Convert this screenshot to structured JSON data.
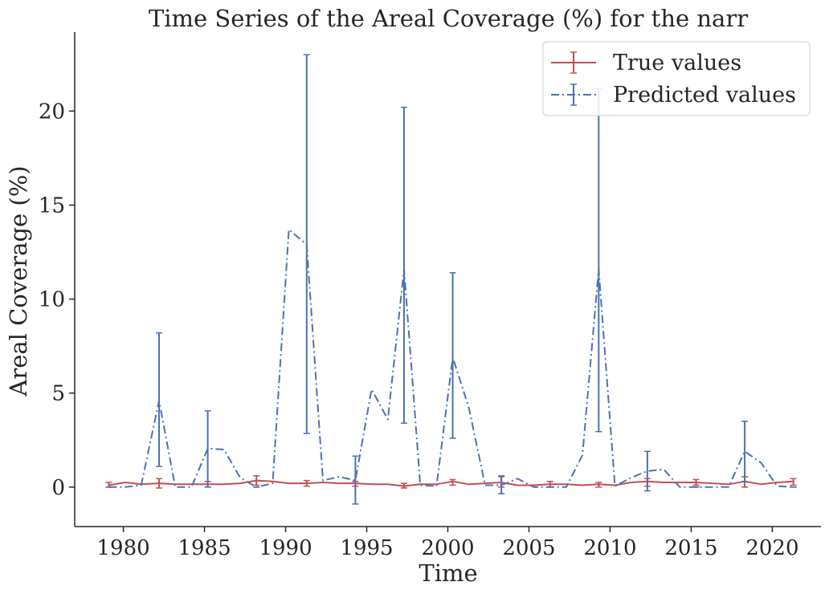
{
  "chart_data": {
    "type": "line",
    "title": "Time Series of the Areal Coverage (%) for the narr",
    "xlabel": "Time",
    "ylabel": "Areal Coverage (%)",
    "xlim": [
      1977,
      2023
    ],
    "ylim": [
      -2.1,
      24.2
    ],
    "x_ticks": [
      1980,
      1985,
      1990,
      1995,
      2000,
      2005,
      2010,
      2015,
      2020
    ],
    "y_ticks": [
      0,
      5,
      10,
      15,
      20
    ],
    "grid": false,
    "legend_position": "top-right",
    "x": [
      1979.1,
      1980.1,
      1981.1,
      1982.2,
      1983.2,
      1984.2,
      1985.2,
      1986.2,
      1987.2,
      1988.2,
      1989.2,
      1990.2,
      1991.3,
      1992.3,
      1993.3,
      1994.3,
      1995.3,
      1996.3,
      1997.3,
      1998.3,
      1999.3,
      2000.3,
      2001.3,
      2002.3,
      2003.3,
      2004.3,
      2005.3,
      2006.3,
      2007.3,
      2008.3,
      2009.3,
      2010.3,
      2011.3,
      2012.3,
      2013.3,
      2014.3,
      2015.3,
      2016.3,
      2017.3,
      2018.3,
      2019.3,
      2020.3,
      2021.3
    ],
    "series": [
      {
        "name": "True values",
        "color": "#c44e52",
        "linestyle": "solid",
        "values": [
          0.1,
          0.25,
          0.15,
          0.2,
          0.15,
          0.15,
          0.15,
          0.15,
          0.2,
          0.35,
          0.3,
          0.2,
          0.2,
          0.25,
          0.2,
          0.2,
          0.15,
          0.15,
          0.05,
          0.15,
          0.15,
          0.3,
          0.15,
          0.2,
          0.25,
          0.1,
          0.1,
          0.15,
          0.15,
          0.1,
          0.15,
          0.1,
          0.25,
          0.3,
          0.25,
          0.25,
          0.25,
          0.2,
          0.15,
          0.3,
          0.15,
          0.25,
          0.3
        ],
        "error_bars": [
          {
            "x": 1979.1,
            "y": 0.1,
            "low": 0.0,
            "high": 0.25
          },
          {
            "x": 1982.2,
            "y": 0.2,
            "low": -0.05,
            "high": 0.45
          },
          {
            "x": 1985.2,
            "y": 0.15,
            "low": 0.0,
            "high": 0.3
          },
          {
            "x": 1988.2,
            "y": 0.35,
            "low": 0.1,
            "high": 0.6
          },
          {
            "x": 1991.3,
            "y": 0.2,
            "low": 0.05,
            "high": 0.35
          },
          {
            "x": 1994.3,
            "y": 0.2,
            "low": 0.05,
            "high": 0.3
          },
          {
            "x": 1997.3,
            "y": 0.05,
            "low": -0.05,
            "high": 0.2
          },
          {
            "x": 2000.3,
            "y": 0.3,
            "low": 0.1,
            "high": 0.4
          },
          {
            "x": 2003.3,
            "y": 0.25,
            "low": 0.0,
            "high": 0.55
          },
          {
            "x": 2006.3,
            "y": 0.15,
            "low": 0.0,
            "high": 0.3
          },
          {
            "x": 2009.3,
            "y": 0.15,
            "low": 0.0,
            "high": 0.25
          },
          {
            "x": 2012.3,
            "y": 0.3,
            "low": 0.05,
            "high": 0.45
          },
          {
            "x": 2015.3,
            "y": 0.25,
            "low": 0.1,
            "high": 0.4
          },
          {
            "x": 2018.3,
            "y": 0.3,
            "low": 0.0,
            "high": 0.55
          },
          {
            "x": 2021.3,
            "y": 0.3,
            "low": 0.1,
            "high": 0.45
          }
        ]
      },
      {
        "name": "Predicted values",
        "color": "#4c72b0",
        "linestyle": "dashdot",
        "values": [
          0.0,
          0.0,
          0.1,
          4.6,
          0.0,
          0.0,
          2.05,
          2.0,
          0.5,
          0.0,
          0.2,
          13.7,
          12.9,
          0.35,
          0.55,
          0.35,
          5.2,
          3.6,
          11.6,
          0.1,
          0.05,
          6.9,
          4.2,
          0.1,
          0.1,
          0.45,
          0.0,
          0.0,
          0.0,
          1.7,
          11.6,
          0.05,
          0.5,
          0.85,
          0.95,
          0.0,
          0.0,
          0.0,
          0.0,
          1.9,
          1.3,
          0.05,
          0.0
        ],
        "error_bars": [
          {
            "x": 1979.1,
            "y": 0.0,
            "low": 0.0,
            "high": 0.0
          },
          {
            "x": 1982.2,
            "y": 4.6,
            "low": 1.1,
            "high": 8.2
          },
          {
            "x": 1985.2,
            "y": 2.05,
            "low": 0.0,
            "high": 4.05
          },
          {
            "x": 1988.2,
            "y": 0.0,
            "low": 0.0,
            "high": 0.0
          },
          {
            "x": 1991.3,
            "y": 12.9,
            "low": 2.85,
            "high": 23.0
          },
          {
            "x": 1994.3,
            "y": 0.35,
            "low": -0.9,
            "high": 1.65
          },
          {
            "x": 1997.3,
            "y": 11.6,
            "low": 3.4,
            "high": 20.2
          },
          {
            "x": 2000.3,
            "y": 6.9,
            "low": 2.6,
            "high": 11.4
          },
          {
            "x": 2003.3,
            "y": 0.1,
            "low": -0.35,
            "high": 0.6
          },
          {
            "x": 2006.3,
            "y": 0.0,
            "low": 0.0,
            "high": 0.0
          },
          {
            "x": 2009.3,
            "y": 11.6,
            "low": 2.95,
            "high": 21.2
          },
          {
            "x": 2012.3,
            "y": 0.85,
            "low": -0.2,
            "high": 1.9
          },
          {
            "x": 2015.3,
            "y": 0.0,
            "low": 0.0,
            "high": 0.0
          },
          {
            "x": 2018.3,
            "y": 1.9,
            "low": 0.3,
            "high": 3.5
          },
          {
            "x": 2021.3,
            "y": 0.0,
            "low": 0.0,
            "high": 0.0
          }
        ]
      }
    ]
  }
}
